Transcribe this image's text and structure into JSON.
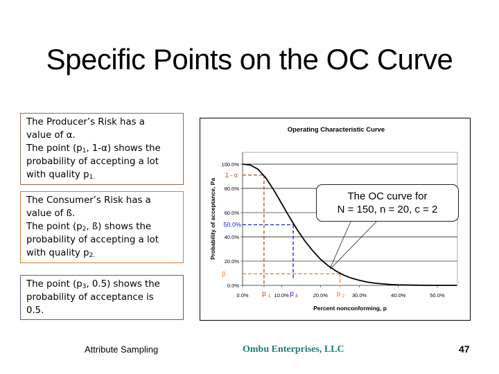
{
  "slide": {
    "title": "Specific Points on the OC Curve",
    "footer": {
      "left": "Attribute Sampling",
      "center": "Ombu Enterprises, LLC",
      "page_number": "47",
      "center_color": "#1d7d77"
    }
  },
  "boxes": [
    {
      "line1": "The Producer’s Risk has a",
      "line2": "value of α.",
      "line3_pre": "The point (p",
      "line3_sub": "1",
      "line3_post": ", 1-α) shows the",
      "line4": "probability of accepting a lot",
      "line5_pre": "with quality p",
      "line5_sub": "1.",
      "border_color": "#8b6a55"
    },
    {
      "line1": "The Consumer’s Risk has a",
      "line2": "value of ß.",
      "line3_pre": "The point (p",
      "line3_sub": "2",
      "line3_post": ", ß) shows the",
      "line4": "probability of accepting a lot",
      "line5_pre": "with quality p",
      "line5_sub": "2.",
      "border_color": "#e07a35"
    },
    {
      "line1_pre": "The point (p",
      "line1_sub": "3",
      "line1_post": ", 0.5) shows the",
      "line2": "probability of acceptance is",
      "line3": "0.5.",
      "border_color": "#5a55b5"
    }
  ],
  "callout": {
    "line1": "The OC curve for",
    "line2": "N = 150, n = 20, c = 2"
  },
  "chart_data": {
    "type": "line",
    "title": "Operating Characteristic Curve",
    "xlabel": "Percent nonconforming, p",
    "ylabel": "Probability of acceptance, Pa",
    "x_ticks": [
      "0.0%",
      "10.0%",
      "20.0%",
      "30.0%",
      "40.0%",
      "50.0%"
    ],
    "y_ticks": [
      "0.0%",
      "20.0%",
      "40.0%",
      "60.0%",
      "80.0%",
      "100.0%"
    ],
    "xlim": [
      0,
      55
    ],
    "ylim": [
      0,
      110
    ],
    "grid": "horizontal",
    "series": [
      {
        "name": "OC curve (N=150, n=20, c=2)",
        "x": [
          0,
          2,
          4,
          6,
          8,
          10,
          12,
          14,
          16,
          18,
          20,
          22,
          24,
          26,
          28,
          30,
          32,
          34,
          36,
          38,
          40,
          45,
          50,
          55
        ],
        "y": [
          100,
          99.3,
          95.7,
          88.5,
          78.7,
          67.7,
          56.6,
          46.0,
          36.6,
          28.5,
          21.6,
          16.1,
          11.8,
          8.4,
          5.9,
          4.1,
          2.7,
          1.8,
          1.2,
          0.7,
          0.4,
          0.1,
          0.0,
          0.0
        ]
      }
    ],
    "annotations": [
      {
        "label": "1 - α",
        "y": 91,
        "color": "#a0522d"
      },
      {
        "label": "p1",
        "x": 5.5,
        "color": "#a0522d"
      },
      {
        "label": "50.0%",
        "y": 50,
        "color": "#1a1ad8"
      },
      {
        "label": "p3",
        "x": 13,
        "color": "#1a1ad8"
      },
      {
        "label": "β",
        "y": 9.5,
        "color": "#e87a30"
      },
      {
        "label": "p2",
        "x": 25,
        "color": "#e87a30"
      }
    ]
  }
}
